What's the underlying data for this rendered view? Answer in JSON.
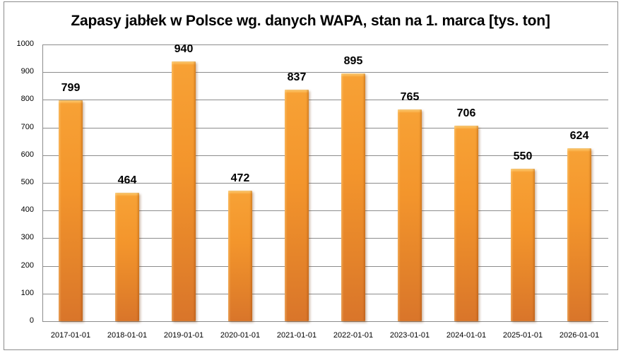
{
  "chart_data": {
    "type": "bar",
    "title": "Zapasy jabłek w Polsce wg. danych WAPA, stan na 1. marca [tys. ton]",
    "categories": [
      "2017-01-01",
      "2018-01-01",
      "2019-01-01",
      "2020-01-01",
      "2021-01-01",
      "2022-01-01",
      "2023-01-01",
      "2024-01-01",
      "2025-01-01",
      "2026-01-01"
    ],
    "values": [
      799,
      464,
      940,
      472,
      837,
      895,
      765,
      706,
      550,
      624
    ],
    "xlabel": "",
    "ylabel": "",
    "ylim": [
      0,
      1000
    ],
    "yticks": [
      "0",
      "100",
      "200",
      "300",
      "400",
      "500",
      "600",
      "700",
      "800",
      "900",
      "1000"
    ],
    "grid": true,
    "legend": "none",
    "bar_color": "#f3952c"
  }
}
